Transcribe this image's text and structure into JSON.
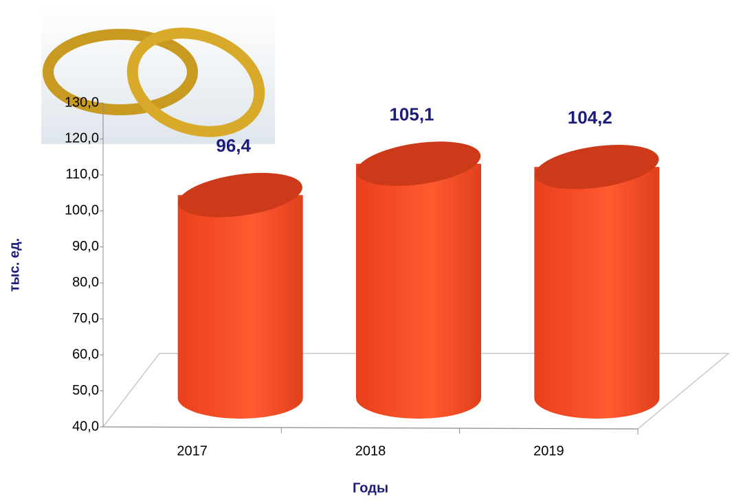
{
  "chart_data": {
    "type": "bar",
    "x_label": "Годы",
    "y_label": "тыс. ед.",
    "categories": [
      "2017",
      "2018",
      "2019"
    ],
    "values": [
      96.4,
      105.1,
      104.2
    ],
    "value_labels": [
      "96,4",
      "105,1",
      "104,2"
    ],
    "color": "#f0451f",
    "ylim": [
      40,
      130
    ],
    "yticks": [
      {
        "value": 40,
        "label": "40,0"
      },
      {
        "value": 50,
        "label": "50,0"
      },
      {
        "value": 60,
        "label": "60,0"
      },
      {
        "value": 70,
        "label": "70,0"
      },
      {
        "value": 80,
        "label": "80,0"
      },
      {
        "value": 90,
        "label": "90,0"
      },
      {
        "value": 100,
        "label": "100,0"
      },
      {
        "value": 110,
        "label": "110,0"
      },
      {
        "value": 120,
        "label": "120,0"
      },
      {
        "value": 130,
        "label": "130,0"
      }
    ]
  }
}
